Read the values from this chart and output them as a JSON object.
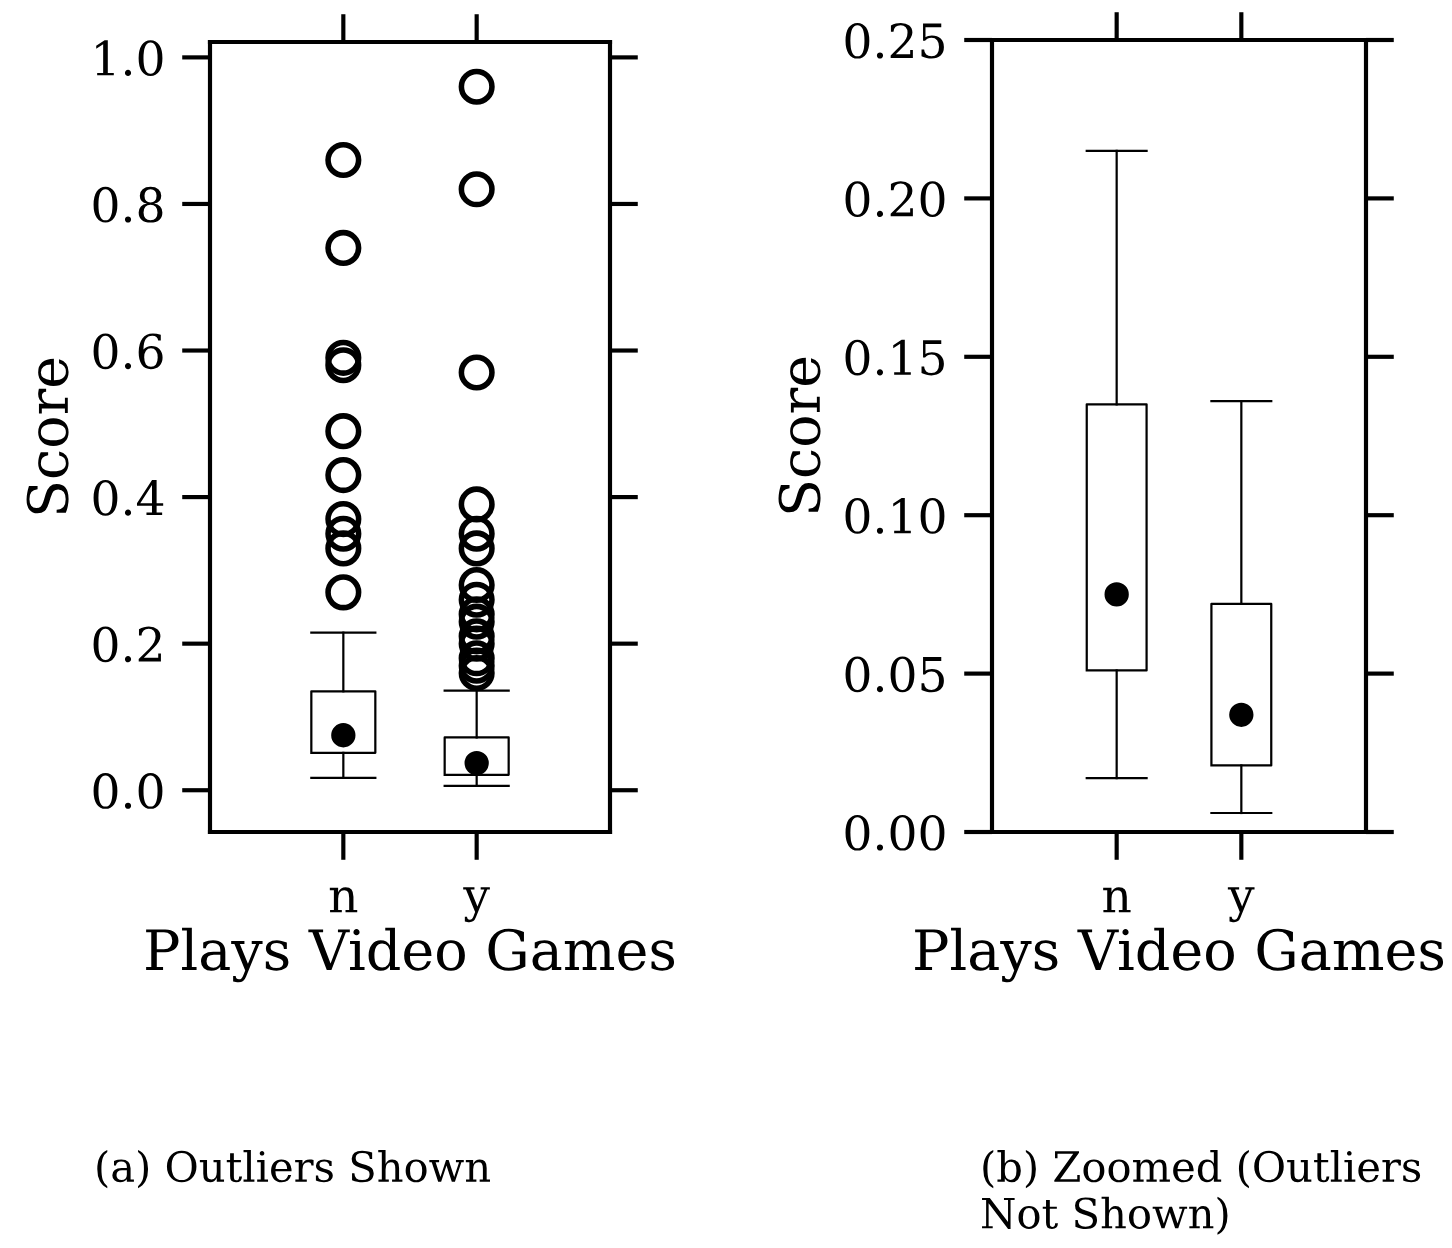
{
  "chart_data": [
    {
      "type": "box",
      "categories": [
        "n",
        "y"
      ],
      "xlabel": "Plays Video Games",
      "ylabel": "Score",
      "ylim": [
        -0.057,
        1.021
      ],
      "yticks": [
        {
          "value": 0,
          "label": "0.0"
        },
        {
          "value": 0.2,
          "label": "0.2"
        },
        {
          "value": 0.4,
          "label": "0.4"
        },
        {
          "value": 0.6,
          "label": "0.6"
        },
        {
          "value": 0.8,
          "label": "0.8"
        },
        {
          "value": 1,
          "label": "1.0"
        }
      ],
      "boxes": [
        {
          "low": 0.017,
          "q1": 0.051,
          "median": 0.075,
          "q3": 0.135,
          "high": 0.215,
          "outliers": [
            0.86,
            0.74,
            0.59,
            0.58,
            0.49,
            0.43,
            0.37,
            0.35,
            0.33,
            0.27
          ]
        },
        {
          "low": 0.006,
          "q1": 0.021,
          "median": 0.037,
          "q3": 0.072,
          "high": 0.136,
          "outliers": [
            0.96,
            0.82,
            0.57,
            0.39,
            0.35,
            0.33,
            0.28,
            0.26,
            0.24,
            0.23,
            0.21,
            0.2,
            0.18,
            0.17,
            0.16
          ]
        }
      ],
      "annotations": [
        "(a) Outliers Shown"
      ]
    },
    {
      "type": "box",
      "categories": [
        "n",
        "y"
      ],
      "xlabel": "Plays Video Games",
      "ylabel": "Score",
      "ylim": [
        0,
        0.25
      ],
      "yticks": [
        {
          "value": 0,
          "label": "0.00"
        },
        {
          "value": 0.05,
          "label": "0.05"
        },
        {
          "value": 0.1,
          "label": "0.10"
        },
        {
          "value": 0.15,
          "label": "0.15"
        },
        {
          "value": 0.2,
          "label": "0.20"
        },
        {
          "value": 0.25,
          "label": "0.25"
        }
      ],
      "boxes": [
        {
          "low": 0.017,
          "q1": 0.051,
          "median": 0.075,
          "q3": 0.135,
          "high": 0.215
        },
        {
          "low": 0.006,
          "q1": 0.021,
          "median": 0.037,
          "q3": 0.072,
          "high": 0.136
        }
      ],
      "annotations": [
        "(b) Zoomed (Outliers Not Shown)"
      ]
    }
  ]
}
